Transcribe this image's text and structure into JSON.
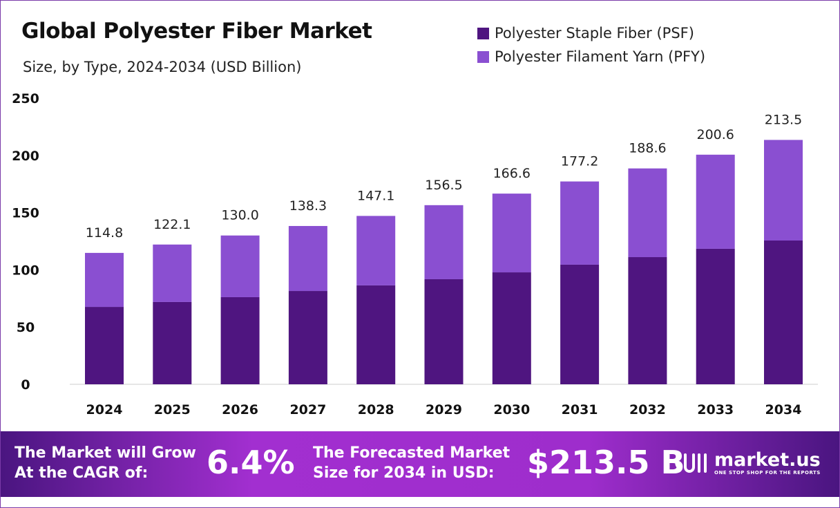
{
  "chart_data": {
    "type": "bar",
    "stacked": true,
    "title": "Global Polyester Fiber Market",
    "subtitle": "Size, by Type, 2024-2034 (USD Billion)",
    "categories": [
      "2024",
      "2025",
      "2026",
      "2027",
      "2028",
      "2029",
      "2030",
      "2031",
      "2032",
      "2033",
      "2034"
    ],
    "series": [
      {
        "name": "Polyester Staple Fiber (PSF)",
        "color": "#4f1580",
        "values": [
          67.6,
          71.9,
          76.1,
          81.5,
          86.4,
          91.8,
          97.8,
          104.5,
          111.1,
          118.4,
          125.6
        ]
      },
      {
        "name": "Polyester Filament Yarn (PFY)",
        "color": "#8a4fd1",
        "values": [
          47.2,
          50.2,
          53.9,
          56.8,
          60.7,
          64.7,
          68.8,
          72.7,
          77.5,
          82.2,
          87.9
        ]
      }
    ],
    "totals": [
      "114.8",
      "122.1",
      "130.0",
      "138.3",
      "147.1",
      "156.5",
      "166.6",
      "177.2",
      "188.6",
      "200.6",
      "213.5"
    ],
    "yticks": [
      "0",
      "50",
      "100",
      "150",
      "200",
      "250"
    ],
    "ylim": [
      0,
      250
    ],
    "grid": false,
    "legend_position": "top-right"
  },
  "footer": {
    "cagr_label_1": "The Market will Grow",
    "cagr_label_2": "At the CAGR of:",
    "cagr_value": "6.4%",
    "forecast_label_1": "The Forecasted Market",
    "forecast_label_2": "Size for 2034 in USD:",
    "forecast_value": "$213.5 B",
    "logo_name": "market.us",
    "logo_tagline": "ONE STOP SHOP FOR THE REPORTS"
  }
}
